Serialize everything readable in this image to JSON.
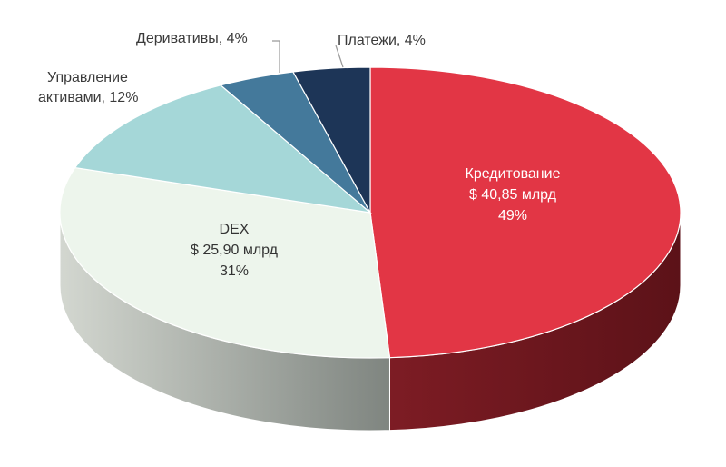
{
  "chart_data": {
    "type": "pie",
    "style": "3d",
    "title": "",
    "slices": [
      {
        "name": "Кредитование",
        "value_text": "$ 40,85 млрд",
        "percent": 49,
        "percent_text": "49%",
        "color": "#e23645",
        "side_color": "#6e161d",
        "label_color": "#ffffff"
      },
      {
        "name": "DEX",
        "value_text": "$ 25,90 млрд",
        "percent": 31,
        "percent_text": "31%",
        "color": "#edf5ec",
        "side_color": "#a9ada6",
        "label_color": "#333333"
      },
      {
        "name": "Управление активами",
        "label_lines": [
          "Управление",
          "активами, 12%"
        ],
        "percent": 12,
        "color": "#a5d7d8",
        "side_color": "#7fa6a7"
      },
      {
        "name": "Деривативы",
        "label_lines": [
          "Деривативы, 4%"
        ],
        "percent": 4,
        "color": "#44799b",
        "side_color": "#2f5770"
      },
      {
        "name": "Платежи",
        "label_lines": [
          "Платежи, 4%"
        ],
        "percent": 4,
        "color": "#1d3557",
        "side_color": "#12223a"
      }
    ]
  }
}
